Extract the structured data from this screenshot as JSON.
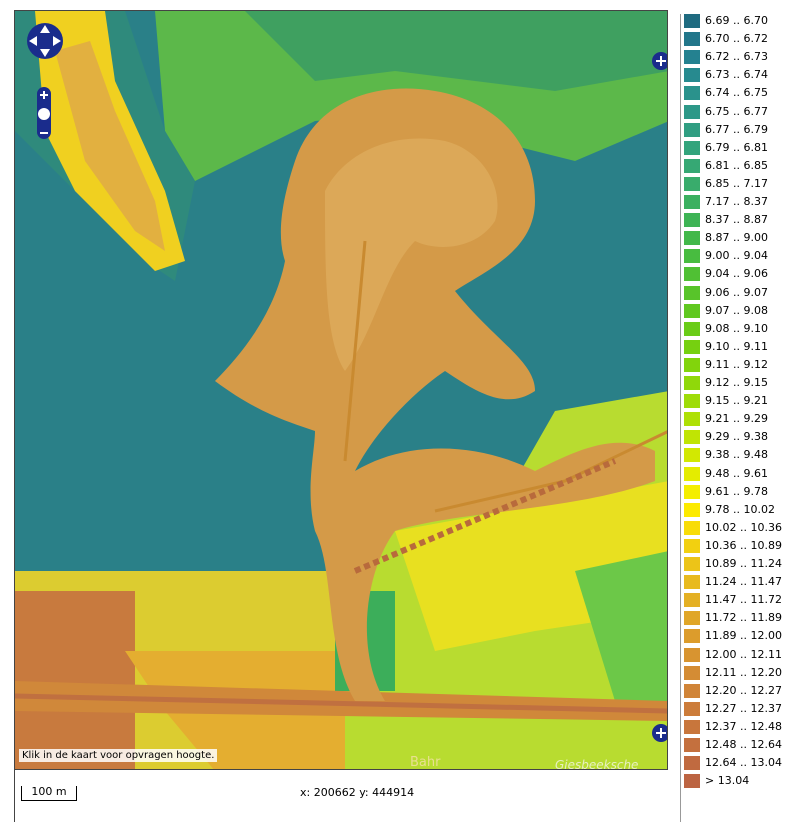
{
  "map": {
    "hint": "Klik in de kaart voor opvragen hoogte.",
    "place_labels": [
      "Bahr",
      "Giesbeeksche"
    ],
    "scale": "100 m",
    "coordinates": "x: 200662 y: 444914"
  },
  "legend": {
    "items": [
      {
        "label": "6.69 .. 6.70",
        "color": "#1f6b80"
      },
      {
        "label": "6.70 .. 6.72",
        "color": "#22768a"
      },
      {
        "label": "6.72 .. 6.73",
        "color": "#248190"
      },
      {
        "label": "6.73 .. 6.74",
        "color": "#278a8f"
      },
      {
        "label": "6.74 .. 6.75",
        "color": "#2a928c"
      },
      {
        "label": "6.75 .. 6.77",
        "color": "#2d9888"
      },
      {
        "label": "6.77 .. 6.79",
        "color": "#309e82"
      },
      {
        "label": "6.79 .. 6.81",
        "color": "#33a47c"
      },
      {
        "label": "6.81 .. 6.85",
        "color": "#36a874"
      },
      {
        "label": "6.85 .. 7.17",
        "color": "#39ac6c"
      },
      {
        "label": "7.17 .. 8.37",
        "color": "#3bb060"
      },
      {
        "label": "8.37 .. 8.87",
        "color": "#3eb455"
      },
      {
        "label": "8.87 .. 9.00",
        "color": "#42b84a"
      },
      {
        "label": "9.00 .. 9.04",
        "color": "#48bc40"
      },
      {
        "label": "9.04 .. 9.06",
        "color": "#50c034"
      },
      {
        "label": "9.06 .. 9.07",
        "color": "#58c42a"
      },
      {
        "label": "9.07 .. 9.08",
        "color": "#60c820"
      },
      {
        "label": "9.08 .. 9.10",
        "color": "#6acc18"
      },
      {
        "label": "9.10 .. 9.11",
        "color": "#76d010"
      },
      {
        "label": "9.11 .. 9.12",
        "color": "#82d40c"
      },
      {
        "label": "9.12 .. 9.15",
        "color": "#90d80a"
      },
      {
        "label": "9.15 .. 9.21",
        "color": "#9edc08"
      },
      {
        "label": "9.21 .. 9.29",
        "color": "#aee006"
      },
      {
        "label": "9.29 .. 9.38",
        "color": "#c0e404"
      },
      {
        "label": "9.38 .. 9.48",
        "color": "#d2e802"
      },
      {
        "label": "9.48 .. 9.61",
        "color": "#e4ec00"
      },
      {
        "label": "9.61 .. 9.78",
        "color": "#f4ee00"
      },
      {
        "label": "9.78 .. 10.02",
        "color": "#fcea00"
      },
      {
        "label": "10.02 .. 10.36",
        "color": "#f8dc08"
      },
      {
        "label": "10.36 .. 10.89",
        "color": "#f2d010"
      },
      {
        "label": "10.89 .. 11.24",
        "color": "#ecc418"
      },
      {
        "label": "11.24 .. 11.47",
        "color": "#e8ba1e"
      },
      {
        "label": "11.47 .. 11.72",
        "color": "#e4b024"
      },
      {
        "label": "11.72 .. 11.89",
        "color": "#e0a628"
      },
      {
        "label": "11.89 .. 12.00",
        "color": "#dc9c2c"
      },
      {
        "label": "12.00 .. 12.11",
        "color": "#d89430"
      },
      {
        "label": "12.11 .. 12.20",
        "color": "#d48c34"
      },
      {
        "label": "12.20 .. 12.27",
        "color": "#d08438"
      },
      {
        "label": "12.27 .. 12.37",
        "color": "#cc7c3a"
      },
      {
        "label": "12.37 .. 12.48",
        "color": "#c8763c"
      },
      {
        "label": "12.48 .. 12.64",
        "color": "#c4703e"
      },
      {
        "label": "12.64 .. 13.04",
        "color": "#c06a40"
      },
      {
        "label": "> 13.04",
        "color": "#bc6442"
      }
    ]
  }
}
